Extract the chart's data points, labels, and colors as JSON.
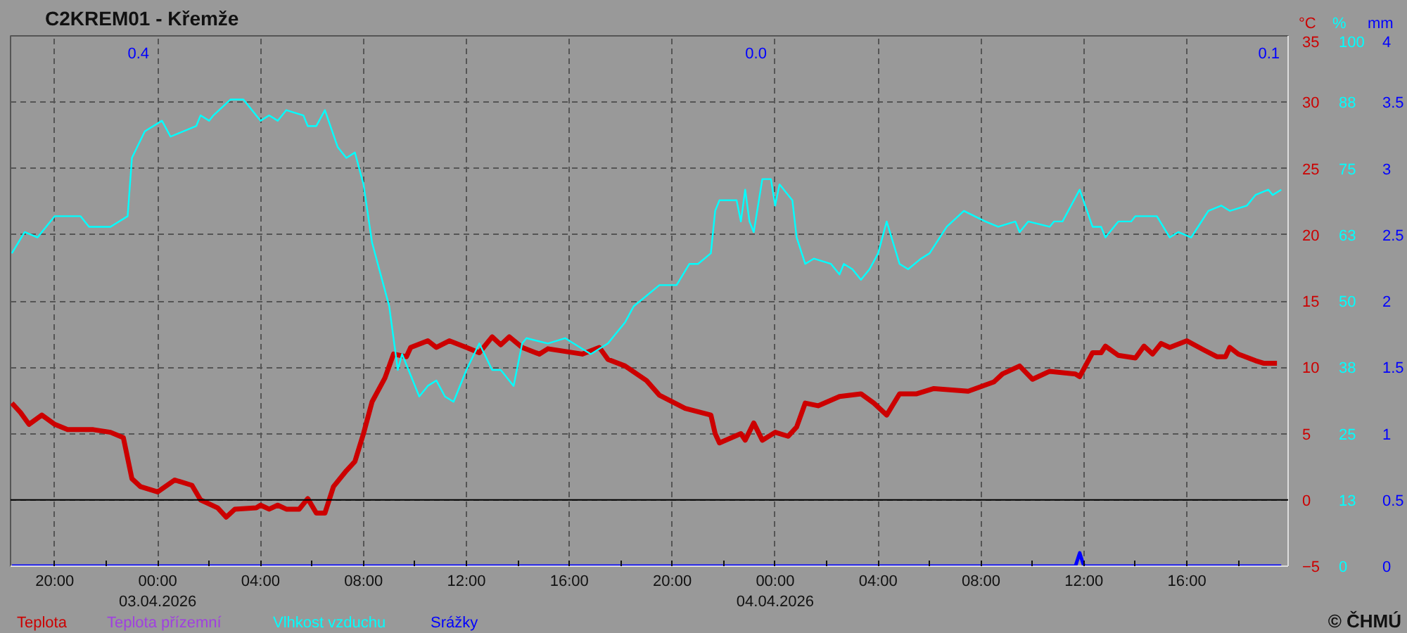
{
  "chart_data": {
    "type": "line",
    "title": "C2KREM01 - Křemže",
    "ylabel": "°C",
    "y2label": "%",
    "y3label": "mm",
    "xlim": [
      "2026-04-02T18:17",
      "2026-04-04T19:56"
    ],
    "xticks": [
      {
        "value": "2026-04-02T20:00",
        "label": "20:00"
      },
      {
        "value": "2026-04-03T00:00",
        "label": "00:00\n03.04.2026"
      },
      {
        "value": "2026-04-03T04:00",
        "label": "04:00"
      },
      {
        "value": "2026-04-03T08:00",
        "label": "08:00"
      },
      {
        "value": "2026-04-03T12:00",
        "label": "12:00"
      },
      {
        "value": "2026-04-03T16:00",
        "label": "16:00"
      },
      {
        "value": "2026-04-03T20:00",
        "label": "20:00"
      },
      {
        "value": "2026-04-04T00:00",
        "label": "00:00\n04.04.2026"
      },
      {
        "value": "2026-04-04T04:00",
        "label": "04:00"
      },
      {
        "value": "2026-04-04T08:00",
        "label": "08:00"
      },
      {
        "value": "2026-04-04T12:00",
        "label": "12:00"
      },
      {
        "value": "2026-04-04T16:00",
        "label": "16:00"
      }
    ],
    "ylim": [
      -5,
      35
    ],
    "yticks": [
      -5,
      0,
      5,
      10,
      15,
      20,
      25,
      30,
      35
    ],
    "y2lim": [
      0,
      100
    ],
    "y2ticks": [
      0,
      {
        "value": 12.5,
        "label": "13"
      },
      25,
      {
        "value": 37.5,
        "label": "38"
      },
      50,
      {
        "value": 62.5,
        "label": "63"
      },
      75,
      {
        "value": 87.5,
        "label": "88"
      },
      100
    ],
    "y3lim": [
      0,
      4
    ],
    "y3ticks": [
      0,
      0.5,
      1,
      1.5,
      2,
      2.5,
      3,
      3.5,
      4
    ],
    "grid": true,
    "ref_lines": [
      {
        "axis": "y",
        "value": 0,
        "color": "#000000"
      }
    ],
    "annotations": [
      "0.4",
      "0.0",
      "0.1",
      "© ČHMÚ"
    ],
    "series": [
      {
        "name": "Teplota",
        "color": "#cc0000",
        "x": [
          "2026-04-02T18:20",
          "2026-04-02T18:40",
          "2026-04-02T19:00",
          "2026-04-02T19:30",
          "2026-04-02T20:00",
          "2026-04-02T20:30",
          "2026-04-02T21:30",
          "2026-04-02T22:10",
          "2026-04-02T22:40",
          "2026-04-02T23:00",
          "2026-04-02T23:20",
          "2026-04-03T00:00",
          "2026-04-03T00:40",
          "2026-04-03T01:20",
          "2026-04-03T01:40",
          "2026-04-03T02:20",
          "2026-04-03T02:40",
          "2026-04-03T03:00",
          "2026-04-03T03:50",
          "2026-04-03T04:00",
          "2026-04-03T04:20",
          "2026-04-03T04:40",
          "2026-04-03T05:00",
          "2026-04-03T05:30",
          "2026-04-03T05:50",
          "2026-04-03T06:10",
          "2026-04-03T06:30",
          "2026-04-03T06:50",
          "2026-04-03T07:20",
          "2026-04-03T07:40",
          "2026-04-03T08:00",
          "2026-04-03T08:20",
          "2026-04-03T08:50",
          "2026-04-03T09:10",
          "2026-04-03T09:40",
          "2026-04-03T09:50",
          "2026-04-03T10:30",
          "2026-04-03T10:50",
          "2026-04-03T11:20",
          "2026-04-03T12:00",
          "2026-04-03T12:30",
          "2026-04-03T13:00",
          "2026-04-03T13:20",
          "2026-04-03T13:40",
          "2026-04-03T14:10",
          "2026-04-03T14:50",
          "2026-04-03T15:10",
          "2026-04-03T15:50",
          "2026-04-03T16:30",
          "2026-04-03T17:10",
          "2026-04-03T17:30",
          "2026-04-03T18:10",
          "2026-04-03T19:00",
          "2026-04-03T19:30",
          "2026-04-03T20:30",
          "2026-04-03T21:30",
          "2026-04-03T21:40",
          "2026-04-03T21:50",
          "2026-04-03T22:40",
          "2026-04-03T22:50",
          "2026-04-03T23:10",
          "2026-04-03T23:30",
          "2026-04-04T00:00",
          "2026-04-04T00:30",
          "2026-04-04T00:50",
          "2026-04-04T01:10",
          "2026-04-04T01:40",
          "2026-04-04T02:30",
          "2026-04-04T03:20",
          "2026-04-04T03:50",
          "2026-04-04T04:20",
          "2026-04-04T04:50",
          "2026-04-04T05:30",
          "2026-04-04T06:10",
          "2026-04-04T07:30",
          "2026-04-04T08:30",
          "2026-04-04T08:50",
          "2026-04-04T09:30",
          "2026-04-04T10:00",
          "2026-04-04T10:40",
          "2026-04-04T11:40",
          "2026-04-04T11:50",
          "2026-04-04T12:20",
          "2026-04-04T12:40",
          "2026-04-04T12:50",
          "2026-04-04T13:20",
          "2026-04-04T14:00",
          "2026-04-04T14:20",
          "2026-04-04T14:40",
          "2026-04-04T15:00",
          "2026-04-04T15:20",
          "2026-04-04T16:00",
          "2026-04-04T16:40",
          "2026-04-04T17:10",
          "2026-04-04T17:30",
          "2026-04-04T17:40",
          "2026-04-04T18:00",
          "2026-04-04T18:40",
          "2026-04-04T19:00",
          "2026-04-04T19:30"
        ],
        "values": [
          7.3,
          6.6,
          5.7,
          6.4,
          5.7,
          5.3,
          5.3,
          5.1,
          4.7,
          1.6,
          1.0,
          0.6,
          1.5,
          1.1,
          0.0,
          -0.6,
          -1.3,
          -0.7,
          -0.6,
          -0.4,
          -0.7,
          -0.4,
          -0.7,
          -0.7,
          0.1,
          -1.0,
          -1.0,
          1.0,
          2.2,
          2.9,
          5.0,
          7.4,
          9.2,
          11.0,
          10.8,
          11.5,
          12.0,
          11.5,
          12.0,
          11.5,
          11.1,
          12.3,
          11.7,
          12.3,
          11.5,
          11.0,
          11.4,
          11.2,
          11.0,
          11.5,
          10.6,
          10.1,
          9.0,
          7.9,
          6.9,
          6.4,
          5.0,
          4.3,
          5.0,
          4.5,
          5.8,
          4.5,
          5.1,
          4.8,
          5.5,
          7.3,
          7.1,
          7.8,
          8.0,
          7.3,
          6.4,
          8.0,
          8.0,
          8.4,
          8.2,
          8.9,
          9.5,
          10.1,
          9.1,
          9.7,
          9.5,
          9.3,
          11.1,
          11.1,
          11.6,
          10.9,
          10.7,
          11.6,
          11.0,
          11.8,
          11.5,
          12.0,
          11.3,
          10.8,
          10.8,
          11.5,
          11.0,
          10.5,
          10.3,
          10.3
        ]
      },
      {
        "name": "Teplota přízemní",
        "color": "#a040e0"
      },
      {
        "name": "Vlhkost vzduchu",
        "color": "#00ffff",
        "axis": "y2",
        "x": [
          "2026-04-02T18:20",
          "2026-04-02T18:50",
          "2026-04-02T19:20",
          "2026-04-02T20:00",
          "2026-04-02T21:00",
          "2026-04-02T21:20",
          "2026-04-02T22:10",
          "2026-04-02T22:50",
          "2026-04-02T23:00",
          "2026-04-02T23:30",
          "2026-04-03T00:10",
          "2026-04-03T00:30",
          "2026-04-03T01:30",
          "2026-04-03T01:40",
          "2026-04-03T02:00",
          "2026-04-03T02:10",
          "2026-04-03T02:50",
          "2026-04-03T03:20",
          "2026-04-03T04:00",
          "2026-04-03T04:20",
          "2026-04-03T04:40",
          "2026-04-03T05:00",
          "2026-04-03T05:40",
          "2026-04-03T05:50",
          "2026-04-03T06:10",
          "2026-04-03T06:30",
          "2026-04-03T07:00",
          "2026-04-03T07:20",
          "2026-04-03T07:40",
          "2026-04-03T08:00",
          "2026-04-03T08:20",
          "2026-04-03T08:50",
          "2026-04-03T09:00",
          "2026-04-03T09:10",
          "2026-04-03T09:20",
          "2026-04-03T09:30",
          "2026-04-03T09:50",
          "2026-04-03T10:10",
          "2026-04-03T10:30",
          "2026-04-03T10:50",
          "2026-04-03T11:10",
          "2026-04-03T11:30",
          "2026-04-03T12:00",
          "2026-04-03T12:30",
          "2026-04-03T13:00",
          "2026-04-03T13:20",
          "2026-04-03T13:50",
          "2026-04-03T14:10",
          "2026-04-03T14:20",
          "2026-04-03T15:10",
          "2026-04-03T15:50",
          "2026-04-03T16:50",
          "2026-04-03T17:30",
          "2026-04-03T18:10",
          "2026-04-03T18:30",
          "2026-04-03T19:30",
          "2026-04-03T20:10",
          "2026-04-03T20:40",
          "2026-04-03T21:00",
          "2026-04-03T21:30",
          "2026-04-03T21:40",
          "2026-04-03T21:50",
          "2026-04-03T22:30",
          "2026-04-03T22:40",
          "2026-04-03T22:50",
          "2026-04-03T23:00",
          "2026-04-03T23:10",
          "2026-04-03T23:30",
          "2026-04-03T23:50",
          "2026-04-04T00:00",
          "2026-04-04T00:10",
          "2026-04-04T00:40",
          "2026-04-04T00:50",
          "2026-04-04T01:10",
          "2026-04-04T01:30",
          "2026-04-04T02:10",
          "2026-04-04T02:30",
          "2026-04-04T02:40",
          "2026-04-04T03:00",
          "2026-04-04T03:20",
          "2026-04-04T03:40",
          "2026-04-04T04:00",
          "2026-04-04T04:20",
          "2026-04-04T04:50",
          "2026-04-04T05:10",
          "2026-04-04T05:40",
          "2026-04-04T06:00",
          "2026-04-04T06:40",
          "2026-04-04T07:20",
          "2026-04-04T08:10",
          "2026-04-04T08:40",
          "2026-04-04T09:20",
          "2026-04-04T09:30",
          "2026-04-04T09:50",
          "2026-04-04T10:40",
          "2026-04-04T10:50",
          "2026-04-04T11:10",
          "2026-04-04T11:30",
          "2026-04-04T11:50",
          "2026-04-04T12:20",
          "2026-04-04T12:40",
          "2026-04-04T12:50",
          "2026-04-04T13:20",
          "2026-04-04T13:50",
          "2026-04-04T14:00",
          "2026-04-04T14:50",
          "2026-04-04T15:20",
          "2026-04-04T15:40",
          "2026-04-04T16:10",
          "2026-04-04T16:50",
          "2026-04-04T17:20",
          "2026-04-04T17:40",
          "2026-04-04T18:20",
          "2026-04-04T18:40",
          "2026-04-04T19:10",
          "2026-04-04T19:20",
          "2026-04-04T19:40"
        ],
        "values": [
          59,
          63,
          62,
          66,
          66,
          64,
          64,
          66,
          77,
          82,
          84,
          81,
          83,
          85,
          84,
          85,
          88,
          88,
          84,
          85,
          84,
          86,
          85,
          83,
          83,
          86,
          79,
          77,
          78,
          72,
          61,
          52,
          49,
          43,
          37,
          40,
          36,
          32,
          34,
          35,
          32,
          31,
          37,
          42,
          37,
          37,
          34,
          42,
          43,
          42,
          43,
          40,
          42,
          46,
          49,
          53,
          53,
          57,
          57,
          59,
          67,
          69,
          69,
          65,
          71,
          65,
          63,
          73,
          73,
          68,
          72,
          69,
          62,
          57,
          58,
          57,
          55,
          57,
          56,
          54,
          56,
          59,
          65,
          57,
          56,
          58,
          59,
          64,
          67,
          65,
          64,
          65,
          63,
          65,
          64,
          65,
          65,
          68,
          71,
          64,
          64,
          62,
          65,
          65,
          66,
          66,
          62,
          63,
          62,
          67,
          68,
          67,
          68,
          70,
          71,
          70,
          71
        ]
      },
      {
        "name": "Srážky",
        "color": "#0000ff",
        "axis": "y3",
        "x": [
          "2026-04-02T18:20",
          "2026-04-04T11:40",
          "2026-04-04T11:50",
          "2026-04-04T12:00",
          "2026-04-04T19:40"
        ],
        "values": [
          0,
          0,
          0.1,
          0,
          0
        ]
      }
    ]
  }
}
